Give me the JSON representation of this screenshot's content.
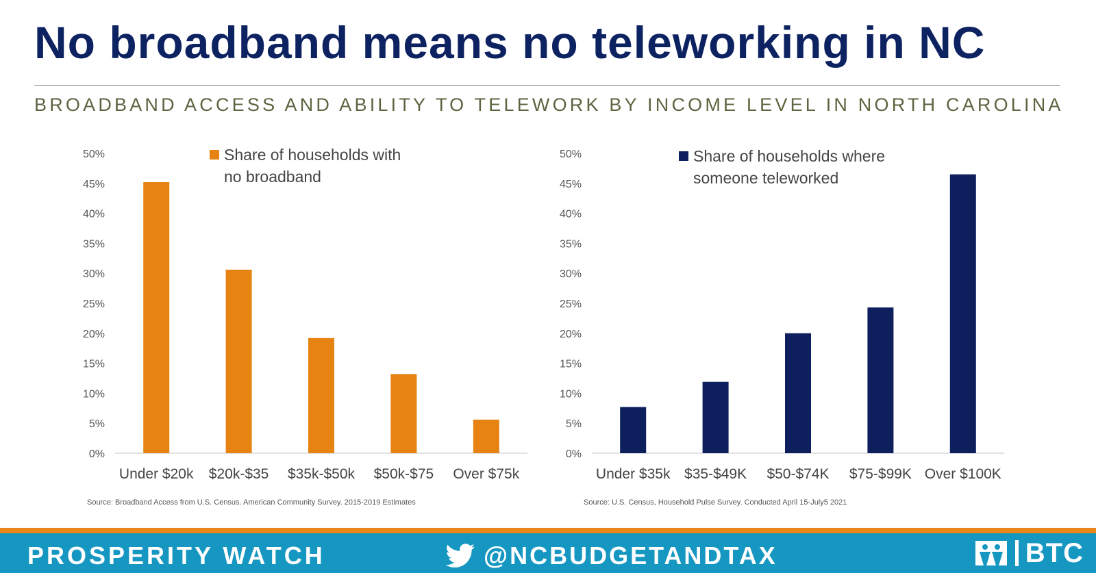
{
  "title": "No broadband means no teleworking in NC",
  "subtitle": "BROADBAND ACCESS AND ABILITY TO TELEWORK BY INCOME LEVEL IN NORTH CAROLINA",
  "chart_data": [
    {
      "type": "bar",
      "color": "#e68312",
      "legend": [
        "Share of households with",
        "no broadband"
      ],
      "categories": [
        "Under $20k",
        "$20k-$35",
        "$35k-$50k",
        "$50k-$75",
        "Over $75k"
      ],
      "values": [
        45.2,
        30.6,
        19.2,
        13.2,
        5.6
      ],
      "y_ticks": [
        "0%",
        "5%",
        "10%",
        "15%",
        "20%",
        "25%",
        "30%",
        "35%",
        "40%",
        "45%",
        "50%"
      ],
      "ylim": [
        0,
        50
      ],
      "grid": false,
      "source": "Source:  Broadband Access from U.S. Census. American Community Survey.  2015-2019 Estimates"
    },
    {
      "type": "bar",
      "color": "#0d1f5c",
      "legend": [
        "Share of households where",
        "someone teleworked"
      ],
      "categories": [
        "Under $35k",
        "$35-$49K",
        "$50-$74K",
        "$75-$99K",
        "Over $100K"
      ],
      "values": [
        7.7,
        11.9,
        20.0,
        24.3,
        46.5
      ],
      "y_ticks": [
        "0%",
        "5%",
        "10%",
        "15%",
        "20%",
        "25%",
        "30%",
        "35%",
        "40%",
        "45%",
        "50%"
      ],
      "ylim": [
        0,
        50
      ],
      "grid": false,
      "source": "Source:  U.S. Census, Household Pulse Survey. Conducted April 15-July5 2021"
    }
  ],
  "footer": {
    "brand": "PROSPERITY WATCH",
    "handle": "@NCBUDGETANDTAX",
    "logo_text": "BTC",
    "twitter_icon": "twitter-bird-icon",
    "logo_icon": "nc-justice-center-logo"
  }
}
